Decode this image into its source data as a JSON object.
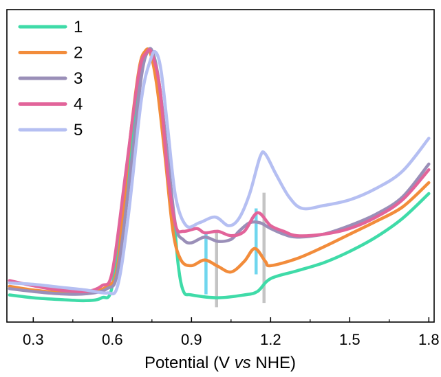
{
  "chart_data": {
    "type": "line",
    "xlabel": {
      "prefix": "Potential (V ",
      "italic": "vs",
      "suffix": " NHE)"
    },
    "xlim": [
      0.2,
      1.82
    ],
    "ylim": [
      0,
      1
    ],
    "x_ticks": [
      {
        "value": 0.3,
        "label": "0.3"
      },
      {
        "value": 0.6,
        "label": "0.6"
      },
      {
        "value": 0.9,
        "label": "0.9"
      },
      {
        "value": 1.2,
        "label": "1.2"
      },
      {
        "value": 1.5,
        "label": "1.5"
      },
      {
        "value": 1.8,
        "label": "1.8"
      }
    ],
    "y_ticks_shown": false,
    "legend_position": "top-left",
    "series": [
      {
        "name": "1",
        "color": "#3fdba8",
        "points": [
          [
            0.21,
            0.078
          ],
          [
            0.3,
            0.068
          ],
          [
            0.4,
            0.062
          ],
          [
            0.5,
            0.058
          ],
          [
            0.56,
            0.068
          ],
          [
            0.6,
            0.11
          ],
          [
            0.65,
            0.45
          ],
          [
            0.7,
            0.82
          ],
          [
            0.73,
            0.925
          ],
          [
            0.755,
            0.92
          ],
          [
            0.78,
            0.8
          ],
          [
            0.8,
            0.62
          ],
          [
            0.83,
            0.38
          ],
          [
            0.85,
            0.18
          ],
          [
            0.87,
            0.09
          ],
          [
            0.9,
            0.078
          ],
          [
            1.0,
            0.068
          ],
          [
            1.1,
            0.078
          ],
          [
            1.15,
            0.09
          ],
          [
            1.2,
            0.135
          ],
          [
            1.3,
            0.162
          ],
          [
            1.4,
            0.19
          ],
          [
            1.5,
            0.23
          ],
          [
            1.6,
            0.28
          ],
          [
            1.7,
            0.345
          ],
          [
            1.8,
            0.432
          ]
        ]
      },
      {
        "name": "2",
        "color": "#f28c3b",
        "points": [
          [
            0.21,
            0.108
          ],
          [
            0.3,
            0.095
          ],
          [
            0.4,
            0.086
          ],
          [
            0.5,
            0.085
          ],
          [
            0.58,
            0.108
          ],
          [
            0.62,
            0.18
          ],
          [
            0.66,
            0.56
          ],
          [
            0.7,
            0.86
          ],
          [
            0.725,
            0.93
          ],
          [
            0.745,
            0.92
          ],
          [
            0.77,
            0.8
          ],
          [
            0.8,
            0.56
          ],
          [
            0.83,
            0.3
          ],
          [
            0.86,
            0.2
          ],
          [
            0.9,
            0.18
          ],
          [
            0.95,
            0.2
          ],
          [
            1.0,
            0.178
          ],
          [
            1.05,
            0.158
          ],
          [
            1.1,
            0.195
          ],
          [
            1.14,
            0.24
          ],
          [
            1.18,
            0.195
          ],
          [
            1.2,
            0.18
          ],
          [
            1.3,
            0.205
          ],
          [
            1.4,
            0.245
          ],
          [
            1.5,
            0.29
          ],
          [
            1.6,
            0.335
          ],
          [
            1.7,
            0.385
          ],
          [
            1.8,
            0.47
          ]
        ]
      },
      {
        "name": "3",
        "color": "#9a8fb8",
        "points": [
          [
            0.21,
            0.1
          ],
          [
            0.3,
            0.09
          ],
          [
            0.4,
            0.082
          ],
          [
            0.5,
            0.082
          ],
          [
            0.58,
            0.1
          ],
          [
            0.62,
            0.16
          ],
          [
            0.67,
            0.52
          ],
          [
            0.71,
            0.84
          ],
          [
            0.735,
            0.93
          ],
          [
            0.755,
            0.92
          ],
          [
            0.78,
            0.8
          ],
          [
            0.81,
            0.56
          ],
          [
            0.84,
            0.32
          ],
          [
            0.87,
            0.27
          ],
          [
            0.9,
            0.26
          ],
          [
            0.95,
            0.28
          ],
          [
            1.0,
            0.265
          ],
          [
            1.05,
            0.272
          ],
          [
            1.08,
            0.3
          ],
          [
            1.12,
            0.33
          ],
          [
            1.16,
            0.33
          ],
          [
            1.2,
            0.31
          ],
          [
            1.25,
            0.29
          ],
          [
            1.3,
            0.28
          ],
          [
            1.4,
            0.29
          ],
          [
            1.5,
            0.32
          ],
          [
            1.6,
            0.36
          ],
          [
            1.7,
            0.42
          ],
          [
            1.8,
            0.535
          ]
        ]
      },
      {
        "name": "4",
        "color": "#e2649a",
        "points": [
          [
            0.21,
            0.128
          ],
          [
            0.3,
            0.11
          ],
          [
            0.4,
            0.095
          ],
          [
            0.5,
            0.09
          ],
          [
            0.56,
            0.11
          ],
          [
            0.6,
            0.16
          ],
          [
            0.65,
            0.5
          ],
          [
            0.7,
            0.85
          ],
          [
            0.73,
            0.925
          ],
          [
            0.75,
            0.92
          ],
          [
            0.78,
            0.8
          ],
          [
            0.81,
            0.5
          ],
          [
            0.84,
            0.32
          ],
          [
            0.87,
            0.3
          ],
          [
            0.92,
            0.31
          ],
          [
            0.95,
            0.295
          ],
          [
            1.0,
            0.3
          ],
          [
            1.05,
            0.285
          ],
          [
            1.1,
            0.3
          ],
          [
            1.15,
            0.365
          ],
          [
            1.2,
            0.32
          ],
          [
            1.25,
            0.3
          ],
          [
            1.3,
            0.285
          ],
          [
            1.4,
            0.29
          ],
          [
            1.5,
            0.31
          ],
          [
            1.6,
            0.35
          ],
          [
            1.7,
            0.41
          ],
          [
            1.8,
            0.515
          ]
        ]
      },
      {
        "name": "5",
        "color": "#b5bff2",
        "points": [
          [
            0.21,
            0.12
          ],
          [
            0.3,
            0.115
          ],
          [
            0.4,
            0.105
          ],
          [
            0.5,
            0.095
          ],
          [
            0.58,
            0.085
          ],
          [
            0.62,
            0.11
          ],
          [
            0.66,
            0.35
          ],
          [
            0.71,
            0.76
          ],
          [
            0.745,
            0.9
          ],
          [
            0.765,
            0.925
          ],
          [
            0.785,
            0.86
          ],
          [
            0.81,
            0.66
          ],
          [
            0.84,
            0.42
          ],
          [
            0.88,
            0.32
          ],
          [
            0.93,
            0.33
          ],
          [
            0.99,
            0.35
          ],
          [
            1.04,
            0.32
          ],
          [
            1.08,
            0.345
          ],
          [
            1.12,
            0.43
          ],
          [
            1.16,
            0.56
          ],
          [
            1.18,
            0.57
          ],
          [
            1.22,
            0.5
          ],
          [
            1.27,
            0.42
          ],
          [
            1.32,
            0.38
          ],
          [
            1.4,
            0.39
          ],
          [
            1.5,
            0.41
          ],
          [
            1.6,
            0.45
          ],
          [
            1.7,
            0.51
          ],
          [
            1.8,
            0.625
          ]
        ]
      }
    ],
    "markers": [
      {
        "x": 0.955,
        "y_from": 0.08,
        "y_to": 0.3,
        "color": "#6fd6ee"
      },
      {
        "x": 0.995,
        "y_from": 0.035,
        "y_to": 0.3,
        "color": "#c4c4c4"
      },
      {
        "x": 1.145,
        "y_from": 0.15,
        "y_to": 0.38,
        "color": "#6fd6ee"
      },
      {
        "x": 1.175,
        "y_from": 0.05,
        "y_to": 0.435,
        "color": "#c4c4c4"
      }
    ]
  }
}
